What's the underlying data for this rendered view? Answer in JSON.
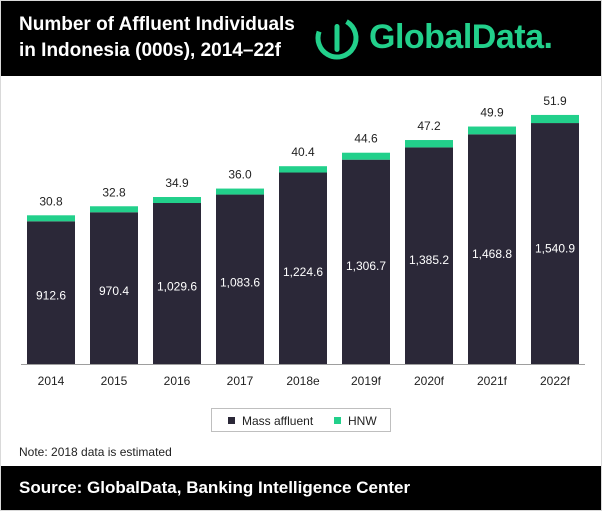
{
  "header": {
    "title_line1": "Number of Affluent Individuals",
    "title_line2": "in Indonesia (000s), 2014–22f",
    "logo_text": "GlobalData."
  },
  "note": "Note: 2018 data is estimated",
  "footer": {
    "source": "Source: GlobalData, Banking Intelligence Center"
  },
  "colors": {
    "mass_affluent": "#2b2838",
    "hnw": "#22d08b",
    "header_bg": "#000000",
    "logo": "#22d08b"
  },
  "chart_data": {
    "type": "bar",
    "stacked": true,
    "categories": [
      "2014",
      "2015",
      "2016",
      "2017",
      "2018e",
      "2019f",
      "2020f",
      "2021f",
      "2022f"
    ],
    "series": [
      {
        "name": "Mass affluent",
        "values": [
          912.6,
          970.4,
          1029.6,
          1083.6,
          1224.6,
          1306.7,
          1385.2,
          1468.8,
          1540.9
        ]
      },
      {
        "name": "HNW",
        "values": [
          30.8,
          32.8,
          34.9,
          36.0,
          40.4,
          44.6,
          47.2,
          49.9,
          51.9
        ]
      }
    ],
    "value_labels": {
      "mass_affluent": [
        "912.6",
        "970.4",
        "1,029.6",
        "1,083.6",
        "1,224.6",
        "1,306.7",
        "1,385.2",
        "1,468.8",
        "1,540.9"
      ],
      "hnw": [
        "30.8",
        "32.8",
        "34.9",
        "36.0",
        "40.4",
        "44.6",
        "47.2",
        "49.9",
        "51.9"
      ]
    },
    "title": "",
    "xlabel": "",
    "ylabel": "",
    "ylim": [
      0,
      1650
    ],
    "grid": false,
    "legend_position": "bottom-center"
  }
}
